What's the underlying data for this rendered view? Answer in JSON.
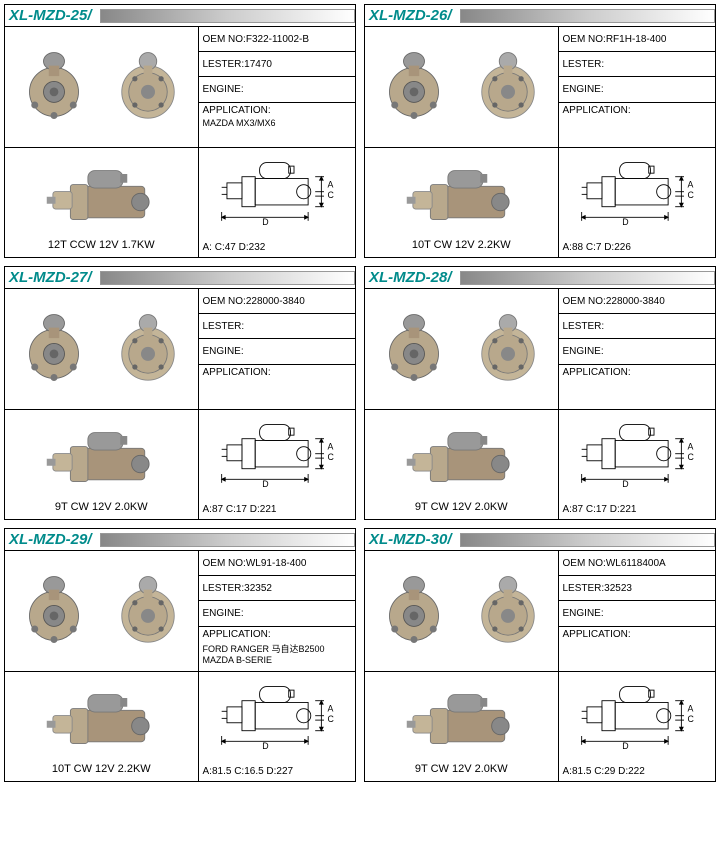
{
  "cards": [
    {
      "title": "XL-MZD-25/",
      "oem": "OEM NO:F322-11002-B",
      "lester": "LESTER:17470",
      "engine": "ENGINE:",
      "application": "APPLICATION:",
      "app_detail": "MAZDA  MX3/MX6",
      "rating": "12T  CCW  12V  1.7KW",
      "dims": "A:     C:47    D:232"
    },
    {
      "title": "XL-MZD-26/",
      "oem": "OEM NO:RF1H-18-400",
      "lester": "LESTER:",
      "engine": "ENGINE:",
      "application": "APPLICATION:",
      "app_detail": "",
      "rating": "10T  CW  12V  2.2KW",
      "dims": "A:88    C:7    D:226"
    },
    {
      "title": "XL-MZD-27/",
      "oem": "OEM NO:228000-3840",
      "lester": "LESTER:",
      "engine": "ENGINE:",
      "application": "APPLICATION:",
      "app_detail": "",
      "rating": "9T  CW  12V  2.0KW",
      "dims": "A:87    C:17    D:221"
    },
    {
      "title": "XL-MZD-28/",
      "oem": "OEM NO:228000-3840",
      "lester": "LESTER:",
      "engine": "ENGINE:",
      "application": "APPLICATION:",
      "app_detail": "",
      "rating": "9T  CW  12V  2.0KW",
      "dims": "A:87    C:17    D:221"
    },
    {
      "title": "XL-MZD-29/",
      "oem": "OEM NO:WL91-18-400",
      "lester": "LESTER:32352",
      "engine": "ENGINE:",
      "application": "APPLICATION:",
      "app_detail": "FORD RANGER 马自达B2500 MAZDA B-SERIE",
      "rating": "10T  CW  12V  2.2KW",
      "dims": "A:81.5   C:16.5   D:227"
    },
    {
      "title": "XL-MZD-30/",
      "oem": "OEM NO:WL6118400A",
      "lester": "LESTER:32523",
      "engine": "ENGINE:",
      "application": "APPLICATION:",
      "app_detail": "",
      "rating": "9T  CW  12V  2.0KW",
      "dims": "A:81.5   C:29    D:222"
    }
  ],
  "colors": {
    "title_color": "#008B8B",
    "border": "#000000",
    "motor_body": "#a8947a",
    "motor_light": "#c4b598"
  }
}
